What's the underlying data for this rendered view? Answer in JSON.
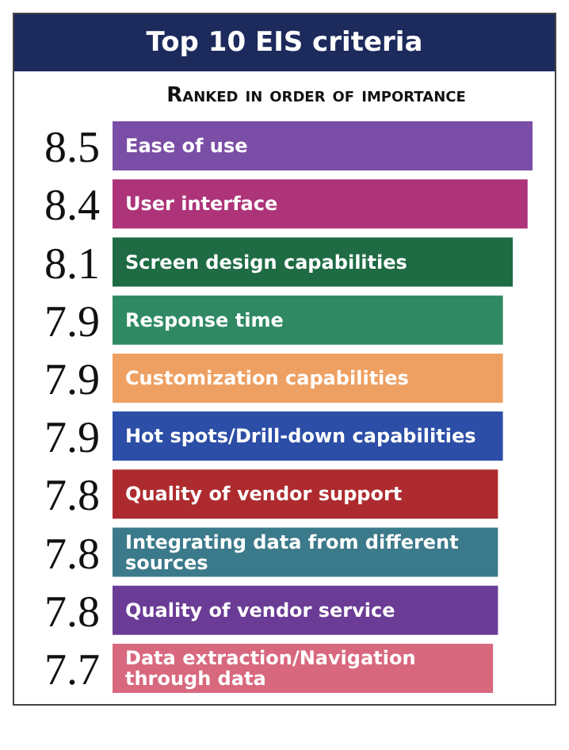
{
  "chart_data": {
    "type": "bar",
    "orientation": "horizontal",
    "title": "Top 10 EIS criteria",
    "subtitle": "Ranked in order of importance",
    "categories": [
      "Ease of use",
      "User interface",
      "Screen design capabilities",
      "Response time",
      "Customization capabilities",
      "Hot spots/Drill-down capabilities",
      "Quality of vendor support",
      "Integrating data from different sources",
      "Quality of vendor service",
      "Data extraction/Navigation through data"
    ],
    "values": [
      8.5,
      8.4,
      8.1,
      7.9,
      7.9,
      7.9,
      7.8,
      7.8,
      7.8,
      7.7
    ],
    "colors": [
      "#7a4ea6",
      "#ad3478",
      "#1e6b44",
      "#2f8a64",
      "#eea062",
      "#2c4ea6",
      "#ad2b2e",
      "#3b7a8a",
      "#6a3c96",
      "#d8687e"
    ],
    "data_labels": true,
    "tick_labels": false,
    "grid": false,
    "legend": false
  }
}
